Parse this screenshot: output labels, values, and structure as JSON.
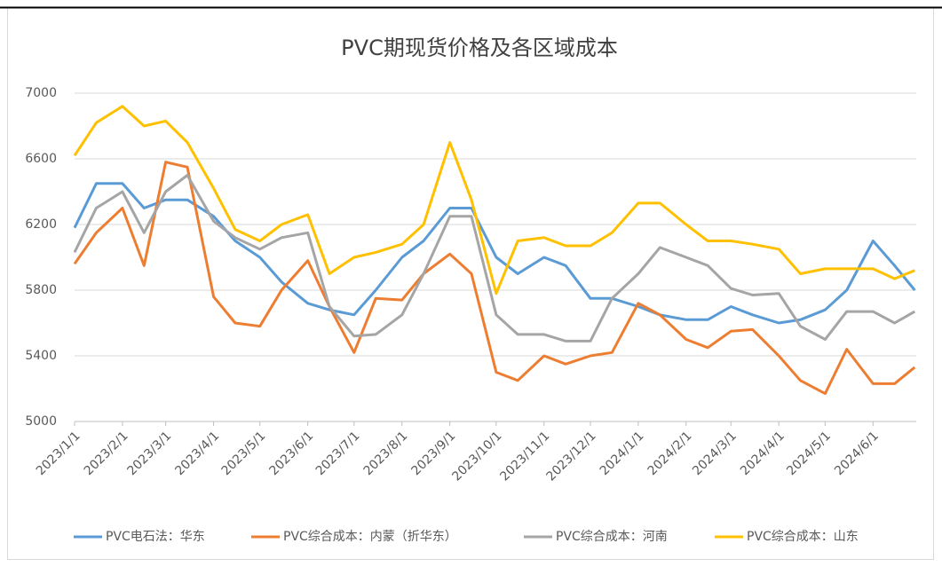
{
  "chart_data": {
    "type": "line",
    "title": "PVC期现货价格及各区域成本",
    "x": [
      "2023/1/1",
      "2023/1/15",
      "2023/2/1",
      "2023/2/15",
      "2023/3/1",
      "2023/3/15",
      "2023/4/1",
      "2023/4/15",
      "2023/5/1",
      "2023/5/15",
      "2023/6/1",
      "2023/6/15",
      "2023/7/1",
      "2023/7/15",
      "2023/8/1",
      "2023/8/15",
      "2023/9/1",
      "2023/9/15",
      "2023/10/1",
      "2023/10/15",
      "2023/11/1",
      "2023/11/15",
      "2023/12/1",
      "2023/12/15",
      "2024/1/1",
      "2024/1/15",
      "2024/2/1",
      "2024/2/15",
      "2024/3/1",
      "2024/3/15",
      "2024/4/1",
      "2024/4/15",
      "2024/5/1",
      "2024/5/15",
      "2024/6/1",
      "2024/6/15",
      "2024/6/28"
    ],
    "series": [
      {
        "name": "PVC电石法：华东",
        "color": "#5b9bd5",
        "values": [
          6180,
          6450,
          6450,
          6300,
          6350,
          6350,
          6250,
          6100,
          6000,
          5850,
          5720,
          5680,
          5650,
          5800,
          6000,
          6100,
          6300,
          6300,
          6000,
          5900,
          6000,
          5950,
          5750,
          5750,
          5700,
          5650,
          5620,
          5620,
          5700,
          5650,
          5600,
          5620,
          5680,
          5800,
          6100,
          5950,
          5800
        ]
      },
      {
        "name": "PVC综合成本：内蒙（折华东）",
        "color": "#ed7d31",
        "values": [
          5960,
          6150,
          6300,
          5950,
          6580,
          6550,
          5760,
          5600,
          5580,
          5800,
          5980,
          5700,
          5420,
          5750,
          5740,
          5900,
          6020,
          5900,
          5300,
          5250,
          5400,
          5350,
          5400,
          5420,
          5720,
          5650,
          5500,
          5450,
          5550,
          5560,
          5400,
          5250,
          5170,
          5440,
          5230,
          5230,
          5330
        ]
      },
      {
        "name": "PVC综合成本：河南",
        "color": "#a5a5a5",
        "values": [
          6030,
          6300,
          6400,
          6150,
          6400,
          6500,
          6220,
          6120,
          6050,
          6120,
          6150,
          5700,
          5520,
          5530,
          5650,
          5900,
          6250,
          6250,
          5650,
          5530,
          5530,
          5490,
          5490,
          5750,
          5900,
          6060,
          6000,
          5950,
          5810,
          5770,
          5780,
          5580,
          5500,
          5670,
          5670,
          5600,
          5670
        ]
      },
      {
        "name": "PVC综合成本：山东",
        "color": "#ffc000",
        "values": [
          6620,
          6820,
          6920,
          6800,
          6830,
          6700,
          6420,
          6170,
          6100,
          6200,
          6260,
          5900,
          6000,
          6030,
          6080,
          6200,
          6700,
          6350,
          5780,
          6100,
          6120,
          6070,
          6070,
          6150,
          6330,
          6330,
          6200,
          6100,
          6100,
          6080,
          6050,
          5900,
          5930,
          5930,
          5930,
          5870,
          5920
        ]
      }
    ],
    "xlim": [
      "2023/1/1",
      "2024/6/29"
    ],
    "xticks": [
      "2023/1/1",
      "2023/2/1",
      "2023/3/1",
      "2023/4/1",
      "2023/5/1",
      "2023/6/1",
      "2023/7/1",
      "2023/8/1",
      "2023/9/1",
      "2023/10/1",
      "2023/11/1",
      "2023/12/1",
      "2024/1/1",
      "2024/2/1",
      "2024/3/1",
      "2024/4/1",
      "2024/5/1",
      "2024/6/1"
    ],
    "ylim": [
      5000,
      7000
    ],
    "yticks": [
      5000,
      5400,
      5800,
      6200,
      6600,
      7000
    ],
    "grid": true,
    "legend": "bottom"
  }
}
